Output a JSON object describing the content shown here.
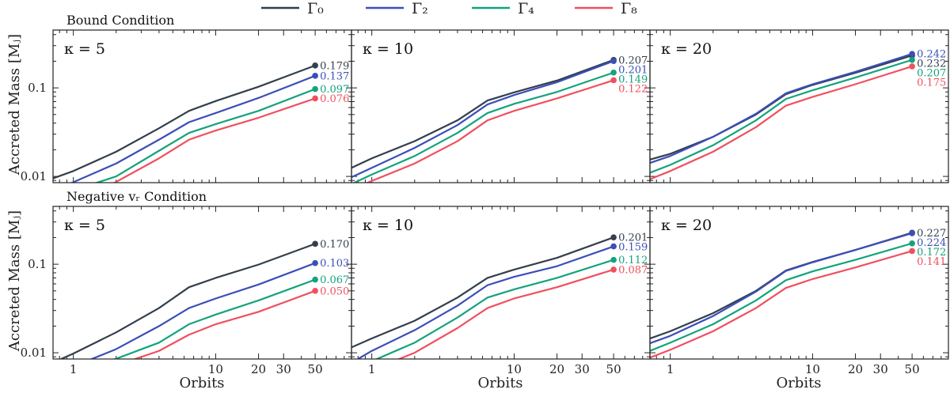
{
  "legend": [
    {
      "label": "Γ₀",
      "color": "#333f4c"
    },
    {
      "label": "Γ₂",
      "color": "#3b4fb8"
    },
    {
      "label": "Γ₄",
      "color": "#14a37a"
    },
    {
      "label": "Γ₈",
      "color": "#f0505f"
    }
  ],
  "row_titles": [
    "Bound Condition",
    "Negative vᵣ Condition"
  ],
  "ylabel": "Accreted Mass [Mⱼ]",
  "xlabel": "Orbits",
  "chart_data": [
    {
      "type": "line",
      "row": 0,
      "col": 0,
      "annotation": "κ = 5",
      "xscale": "log",
      "yscale": "log",
      "xlim": [
        0.72,
        90
      ],
      "ylim": [
        0.0085,
        0.45
      ],
      "xticks": [
        1,
        10,
        20,
        30,
        50
      ],
      "yticks": [
        0.01,
        0.1
      ],
      "series": [
        {
          "name": "Γ₀",
          "x": [
            0.72,
            1,
            2,
            4,
            6.5,
            10,
            20,
            50
          ],
          "y": [
            0.0095,
            0.0115,
            0.019,
            0.035,
            0.055,
            0.071,
            0.103,
            0.179
          ],
          "end_label": "0.179"
        },
        {
          "name": "Γ₂",
          "x": [
            0.95,
            2,
            4,
            6.5,
            10,
            20,
            50
          ],
          "y": [
            0.0083,
            0.014,
            0.026,
            0.041,
            0.052,
            0.077,
            0.137
          ],
          "end_label": "0.137"
        },
        {
          "name": "Γ₄",
          "x": [
            1.4,
            2,
            4,
            6.5,
            10,
            20,
            50
          ],
          "y": [
            0.0083,
            0.01,
            0.0195,
            0.031,
            0.039,
            0.055,
            0.097
          ],
          "end_label": "0.097"
        },
        {
          "name": "Γ₈",
          "x": [
            1.9,
            4,
            6.5,
            10,
            20,
            50
          ],
          "y": [
            0.0083,
            0.016,
            0.026,
            0.033,
            0.046,
            0.076
          ],
          "end_label": "0.076"
        }
      ]
    },
    {
      "type": "line",
      "row": 0,
      "col": 1,
      "annotation": "κ = 10",
      "xscale": "log",
      "yscale": "log",
      "xlim": [
        0.72,
        90
      ],
      "ylim": [
        0.0085,
        0.45
      ],
      "xticks": [
        1,
        10,
        20,
        30,
        50
      ],
      "yticks": [
        0.01,
        0.1
      ],
      "series": [
        {
          "name": "Γ₀",
          "x": [
            0.72,
            1,
            2,
            4,
            6.5,
            10,
            20,
            50
          ],
          "y": [
            0.0125,
            0.016,
            0.025,
            0.043,
            0.072,
            0.089,
            0.121,
            0.207
          ],
          "end_label": "0.207"
        },
        {
          "name": "Γ₂",
          "x": [
            0.72,
            1,
            2,
            4,
            6.5,
            10,
            20,
            50
          ],
          "y": [
            0.0098,
            0.0125,
            0.021,
            0.038,
            0.065,
            0.083,
            0.116,
            0.201
          ],
          "end_label": "0.201"
        },
        {
          "name": "Γ₄",
          "x": [
            0.72,
            1,
            2,
            4,
            6.5,
            10,
            20,
            50
          ],
          "y": [
            0.0082,
            0.0105,
            0.017,
            0.031,
            0.052,
            0.066,
            0.09,
            0.149
          ],
          "end_label": "0.149"
        },
        {
          "name": "Γ₈",
          "x": [
            0.9,
            2,
            4,
            6.5,
            10,
            20,
            50
          ],
          "y": [
            0.0083,
            0.014,
            0.025,
            0.043,
            0.055,
            0.076,
            0.122
          ],
          "end_label": "0.122"
        }
      ]
    },
    {
      "type": "line",
      "row": 0,
      "col": 2,
      "annotation": "κ = 20",
      "xscale": "log",
      "yscale": "log",
      "xlim": [
        0.72,
        90
      ],
      "ylim": [
        0.0085,
        0.45
      ],
      "xticks": [
        1,
        10,
        20,
        30,
        50
      ],
      "yticks": [
        0.01,
        0.1
      ],
      "series": [
        {
          "name": "Γ₀",
          "x": [
            0.72,
            1,
            2,
            4,
            6.5,
            10,
            20,
            50
          ],
          "y": [
            0.0155,
            0.018,
            0.028,
            0.05,
            0.085,
            0.108,
            0.148,
            0.232
          ],
          "end_label": "0.232"
        },
        {
          "name": "Γ₂",
          "x": [
            0.72,
            1,
            2,
            4,
            6.5,
            10,
            20,
            50
          ],
          "y": [
            0.0142,
            0.017,
            0.028,
            0.051,
            0.087,
            0.11,
            0.152,
            0.242
          ],
          "end_label": "0.242"
        },
        {
          "name": "Γ₄",
          "x": [
            0.72,
            1,
            2,
            4,
            6.5,
            10,
            20,
            50
          ],
          "y": [
            0.011,
            0.0135,
            0.0225,
            0.043,
            0.075,
            0.094,
            0.131,
            0.207
          ],
          "end_label": "0.207"
        },
        {
          "name": "Γ₈",
          "x": [
            0.72,
            1,
            2,
            4,
            6.5,
            10,
            20,
            50
          ],
          "y": [
            0.0093,
            0.0115,
            0.019,
            0.036,
            0.063,
            0.079,
            0.11,
            0.175
          ],
          "end_label": "0.175"
        }
      ]
    },
    {
      "type": "line",
      "row": 1,
      "col": 0,
      "annotation": "κ = 5",
      "xscale": "log",
      "yscale": "log",
      "xlim": [
        0.72,
        90
      ],
      "ylim": [
        0.0085,
        0.45
      ],
      "xticks": [
        1,
        10,
        20,
        30,
        50
      ],
      "yticks": [
        0.01,
        0.1
      ],
      "series": [
        {
          "name": "Γ₀",
          "x": [
            0.82,
            1,
            2,
            4,
            6.5,
            10,
            20,
            50
          ],
          "y": [
            0.0085,
            0.0098,
            0.017,
            0.032,
            0.055,
            0.07,
            0.099,
            0.17
          ],
          "end_label": "0.170"
        },
        {
          "name": "Γ₂",
          "x": [
            1.3,
            2,
            4,
            6.5,
            10,
            20,
            50
          ],
          "y": [
            0.0083,
            0.011,
            0.02,
            0.032,
            0.041,
            0.059,
            0.103
          ],
          "end_label": "0.103"
        },
        {
          "name": "Γ₄",
          "x": [
            1.9,
            4,
            6.5,
            10,
            20,
            50
          ],
          "y": [
            0.0083,
            0.013,
            0.021,
            0.027,
            0.039,
            0.067
          ],
          "end_label": "0.067"
        },
        {
          "name": "Γ₈",
          "x": [
            2.6,
            4,
            6.5,
            10,
            20,
            50
          ],
          "y": [
            0.0083,
            0.0105,
            0.016,
            0.021,
            0.029,
            0.05
          ],
          "end_label": "0.050"
        }
      ]
    },
    {
      "type": "line",
      "row": 1,
      "col": 1,
      "annotation": "κ = 10",
      "xscale": "log",
      "yscale": "log",
      "xlim": [
        0.72,
        90
      ],
      "ylim": [
        0.0085,
        0.45
      ],
      "xticks": [
        1,
        10,
        20,
        30,
        50
      ],
      "yticks": [
        0.01,
        0.1
      ],
      "series": [
        {
          "name": "Γ₀",
          "x": [
            0.72,
            1,
            2,
            4,
            6.5,
            10,
            20,
            50
          ],
          "y": [
            0.0115,
            0.0145,
            0.023,
            0.042,
            0.07,
            0.087,
            0.118,
            0.201
          ],
          "end_label": "0.201"
        },
        {
          "name": "Γ₂",
          "x": [
            0.8,
            1,
            2,
            4,
            6.5,
            10,
            20,
            50
          ],
          "y": [
            0.0085,
            0.0105,
            0.018,
            0.034,
            0.058,
            0.072,
            0.095,
            0.159
          ],
          "end_label": "0.159"
        },
        {
          "name": "Γ₄",
          "x": [
            1.05,
            2,
            4,
            6.5,
            10,
            20,
            50
          ],
          "y": [
            0.0083,
            0.013,
            0.025,
            0.042,
            0.052,
            0.07,
            0.112
          ],
          "end_label": "0.112"
        },
        {
          "name": "Γ₈",
          "x": [
            1.5,
            2,
            4,
            6.5,
            10,
            20,
            50
          ],
          "y": [
            0.0083,
            0.01,
            0.019,
            0.032,
            0.041,
            0.055,
            0.087
          ],
          "end_label": "0.087"
        }
      ]
    },
    {
      "type": "line",
      "row": 1,
      "col": 2,
      "annotation": "κ = 20",
      "xscale": "log",
      "yscale": "log",
      "xlim": [
        0.72,
        90
      ],
      "ylim": [
        0.0085,
        0.45
      ],
      "xticks": [
        1,
        10,
        20,
        30,
        50
      ],
      "yticks": [
        0.01,
        0.1
      ],
      "series": [
        {
          "name": "Γ₀",
          "x": [
            0.72,
            1,
            2,
            4,
            6.5,
            10,
            20,
            50
          ],
          "y": [
            0.0145,
            0.0175,
            0.028,
            0.05,
            0.085,
            0.106,
            0.145,
            0.227
          ],
          "end_label": "0.227"
        },
        {
          "name": "Γ₂",
          "x": [
            0.72,
            1,
            2,
            4,
            6.5,
            10,
            20,
            50
          ],
          "y": [
            0.0128,
            0.0155,
            0.026,
            0.049,
            0.084,
            0.105,
            0.145,
            0.224
          ],
          "end_label": "0.224"
        },
        {
          "name": "Γ₄",
          "x": [
            0.72,
            1,
            2,
            4,
            6.5,
            10,
            20,
            50
          ],
          "y": [
            0.0105,
            0.013,
            0.021,
            0.039,
            0.066,
            0.083,
            0.112,
            0.172
          ],
          "end_label": "0.172"
        },
        {
          "name": "Γ₈",
          "x": [
            0.72,
            1,
            2,
            4,
            6.5,
            10,
            20,
            50
          ],
          "y": [
            0.0088,
            0.0108,
            0.0175,
            0.032,
            0.054,
            0.068,
            0.092,
            0.141
          ],
          "end_label": "0.141"
        }
      ]
    }
  ]
}
